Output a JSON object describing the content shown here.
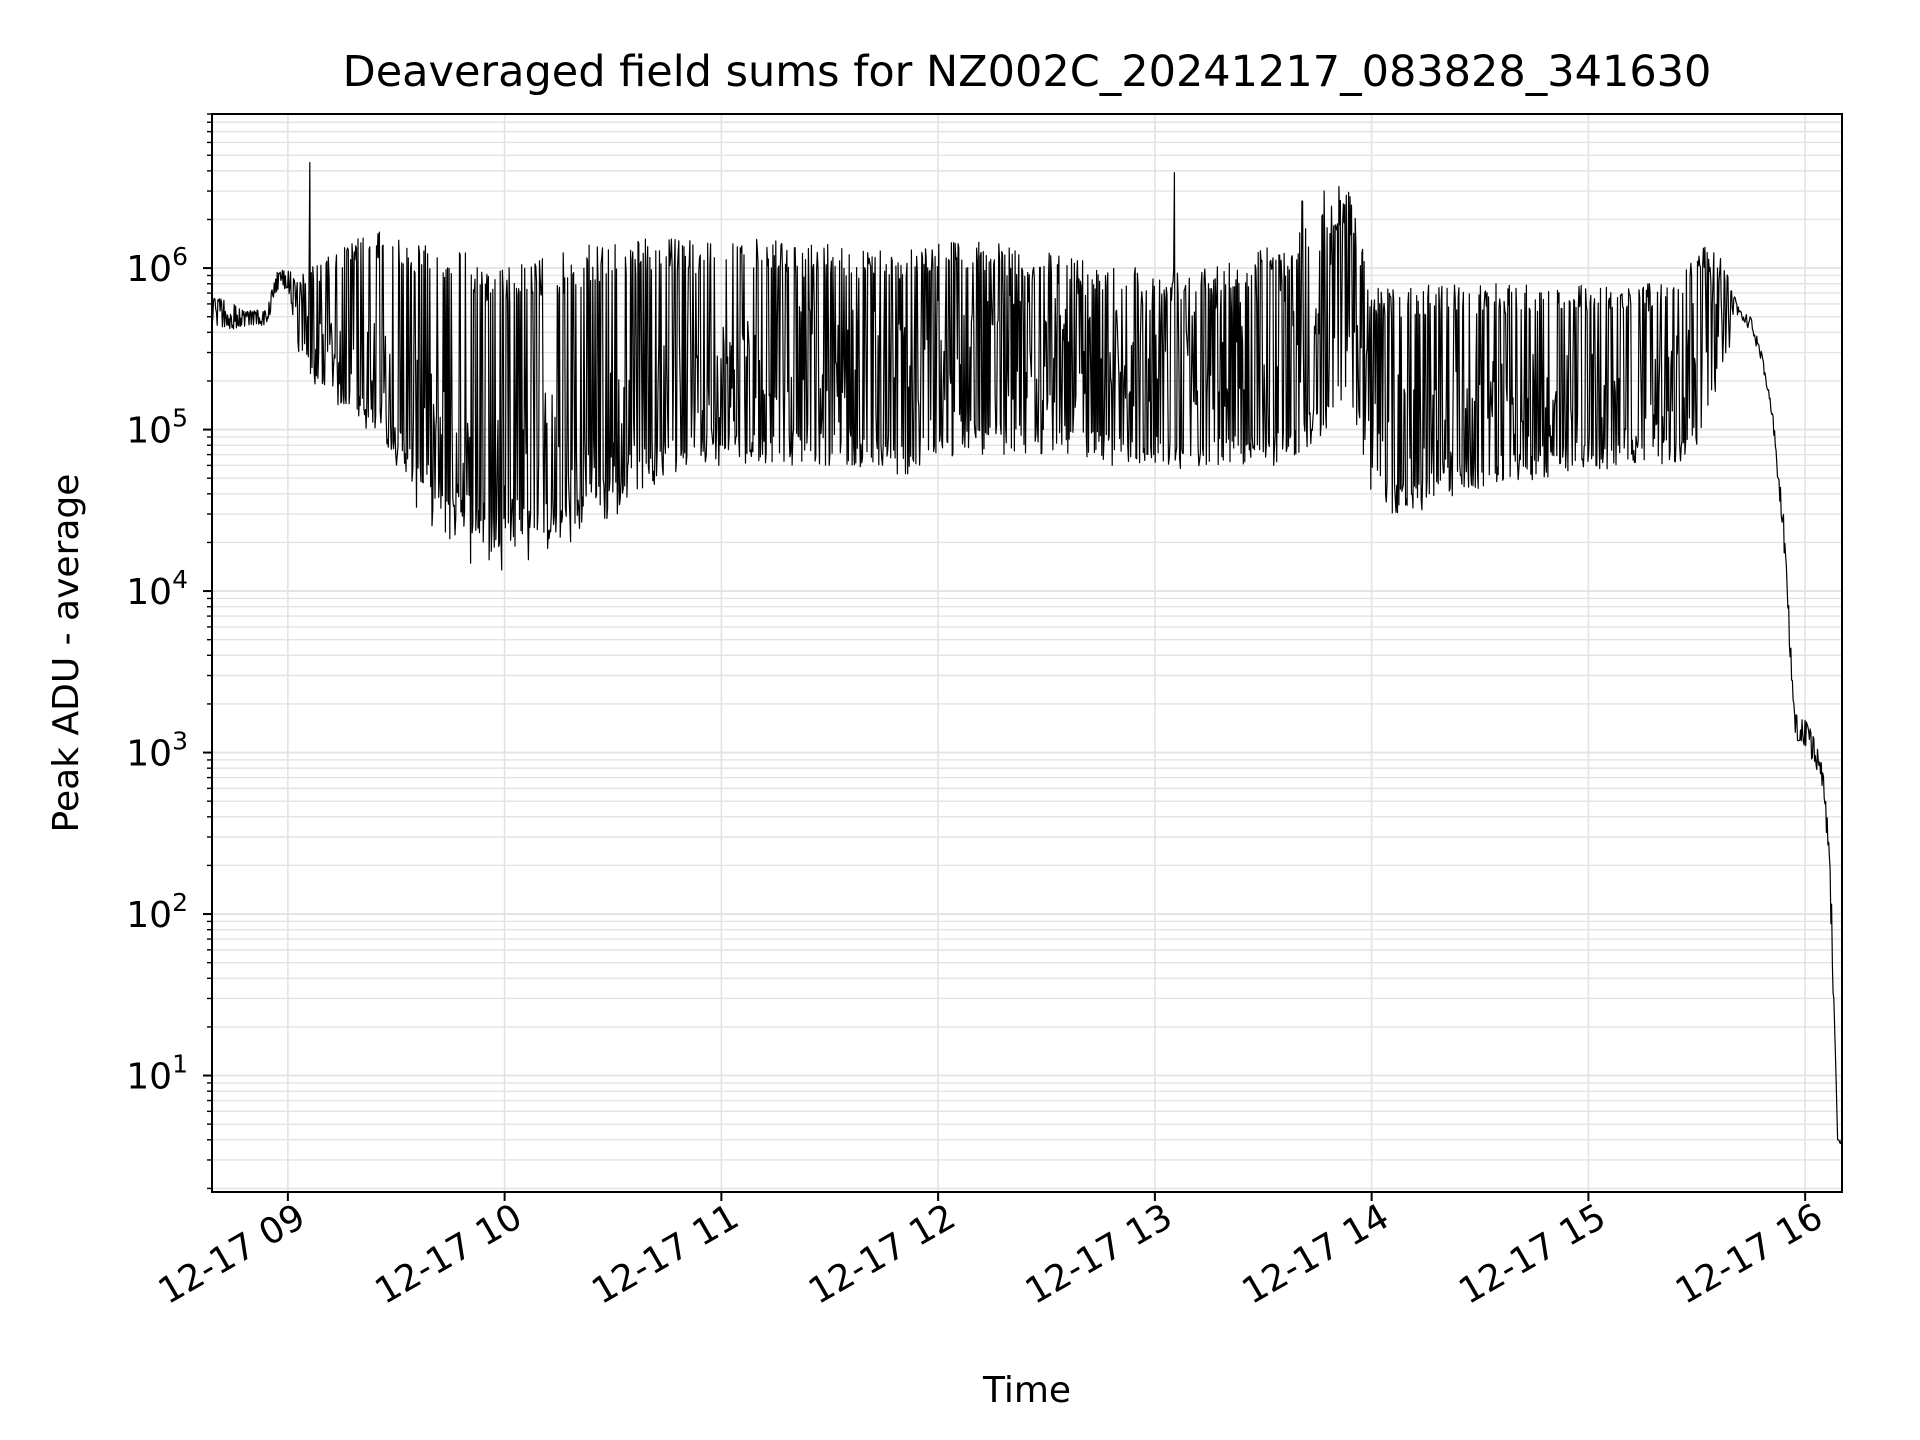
{
  "chart_data": {
    "type": "line",
    "title": "Deaveraged field sums for NZ002C_20241217_083828_341630",
    "xlabel": "Time",
    "ylabel": "Peak ADU - average",
    "x_tick_labels": [
      "12-17 09",
      "12-17 10",
      "12-17 11",
      "12-17 12",
      "12-17 13",
      "12-17 14",
      "12-17 15",
      "12-17 16"
    ],
    "x_tick_hours": [
      9,
      10,
      11,
      12,
      13,
      14,
      15,
      16
    ],
    "xlim_hours": [
      8.65,
      16.17
    ],
    "y_scale": "log",
    "y_tick_base": "10",
    "y_tick_exponents": [
      "1",
      "2",
      "3",
      "4",
      "5",
      "6"
    ],
    "ylim": [
      1.9,
      9000000
    ],
    "grid": true,
    "line_color": "#000000",
    "grid_color": "#e3e3e3",
    "series": [
      {
        "note_points_are": "approximate envelope of a dense noisy signal; x in hours of day, y in ADU",
        "hours": [
          8.65,
          8.7,
          8.75,
          8.8,
          8.85,
          8.9,
          8.95,
          9.0,
          9.05,
          9.1,
          9.2,
          9.3,
          9.4,
          9.5,
          9.6,
          9.7,
          9.8,
          9.9,
          10.0,
          10.1,
          10.2,
          10.3,
          10.4,
          10.5,
          10.6,
          10.7,
          10.8,
          10.9,
          11.0,
          11.2,
          11.4,
          11.6,
          11.8,
          12.0,
          12.2,
          12.4,
          12.6,
          12.8,
          13.0,
          13.2,
          13.4,
          13.6,
          13.8,
          13.9,
          14.0,
          14.1,
          14.2,
          14.4,
          14.6,
          14.8,
          15.0,
          15.2,
          15.4,
          15.5,
          15.6,
          15.7,
          15.75,
          15.8,
          15.85,
          15.9,
          15.93,
          15.95,
          16.0,
          16.05,
          16.08,
          16.1,
          16.12,
          16.15,
          16.17
        ],
        "mid": [
          600000,
          550000,
          520000,
          500000,
          500000,
          480000,
          800000,
          900000,
          500000,
          350000,
          300000,
          250000,
          200000,
          150000,
          90000,
          70000,
          50000,
          45000,
          45000,
          50000,
          55000,
          60000,
          70000,
          80000,
          110000,
          130000,
          160000,
          180000,
          200000,
          220000,
          230000,
          240000,
          220000,
          260000,
          280000,
          290000,
          300000,
          300000,
          300000,
          320000,
          340000,
          400000,
          600000,
          700000,
          150000,
          90000,
          80000,
          100000,
          120000,
          130000,
          140000,
          160000,
          180000,
          300000,
          600000,
          520000,
          450000,
          280000,
          120000,
          25000,
          5000,
          1500,
          1400,
          1000,
          700,
          400,
          120,
          4,
          4
        ],
        "high": [
          700000,
          650000,
          600000,
          550000,
          550000,
          550000,
          950000,
          1000000,
          900000,
          1000000,
          1200000,
          1500000,
          1700000,
          1600000,
          1500000,
          1400000,
          1300000,
          1100000,
          1000000,
          1100000,
          1200000,
          1300000,
          1400000,
          1500000,
          1500000,
          1600000,
          1500000,
          1500000,
          1600000,
          1500000,
          1400000,
          1400000,
          1300000,
          1500000,
          1500000,
          1300000,
          1200000,
          1100000,
          1000000,
          1100000,
          1200000,
          1500000,
          2500000,
          3000000,
          800000,
          800000,
          800000,
          800000,
          800000,
          800000,
          800000,
          800000,
          800000,
          1400000,
          1300000,
          540000,
          500000,
          300000,
          130000,
          30000,
          6000,
          1800,
          1600,
          1200,
          800,
          500,
          150,
          4,
          4
        ],
        "low": [
          450000,
          420000,
          420000,
          430000,
          440000,
          440000,
          700000,
          750000,
          300000,
          200000,
          150000,
          120000,
          90000,
          70000,
          40000,
          30000,
          25000,
          20000,
          18000,
          19000,
          20000,
          22000,
          25000,
          30000,
          40000,
          50000,
          55000,
          60000,
          60000,
          60000,
          60000,
          60000,
          50000,
          60000,
          70000,
          70000,
          70000,
          60000,
          60000,
          55000,
          60000,
          60000,
          100000,
          150000,
          40000,
          30000,
          30000,
          40000,
          45000,
          50000,
          55000,
          60000,
          60000,
          70000,
          200000,
          500000,
          400000,
          260000,
          110000,
          20000,
          4000,
          1200,
          1100,
          800,
          600,
          300,
          80,
          3.8,
          3.8
        ]
      }
    ],
    "spikes": [
      {
        "hour": 9.1,
        "value": 4500000
      },
      {
        "hour": 13.09,
        "value": 3900000
      },
      {
        "hour": 13.85,
        "value": 3200000
      },
      {
        "hour": 13.78,
        "value": 3000000
      },
      {
        "hour": 13.68,
        "value": 2600000
      }
    ]
  }
}
